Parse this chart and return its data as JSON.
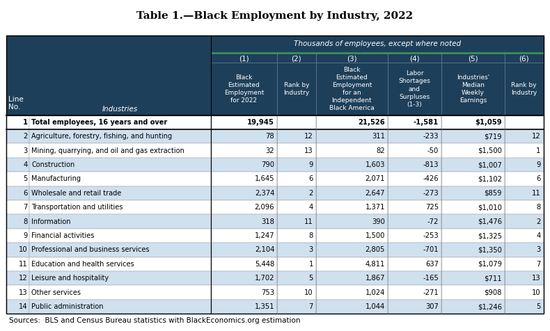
{
  "title": "Table 1.—Black Employment by Industry, 2022",
  "subtitle": "Thousands of employees, except where noted",
  "footnote": "Sources:  BLS and Census Bureau statistics with BlackEconomics.org estimation",
  "header_bg": "#1e3f5a",
  "header_text_color": "#ffffff",
  "alt_row_color": "#cfe0ef",
  "white_row_color": "#ffffff",
  "border_color": "#000000",
  "accent_color": "#3a8a5c",
  "col_numbers": [
    "(1)",
    "(2)",
    "(3)",
    "(4)",
    "(5)",
    "(6)"
  ],
  "col_headers": [
    "Black\nEstimated\nEmployment\nfor 2022",
    "Rank by\nIndustry",
    "Black\nEstimated\nEmployment\nfor an\nIndependent\nBlack America",
    "Labor\nShortages\nand\nSurpluses\n(1-3)",
    "Industries'\nMedian\nWeekly\nEarnings",
    "Rank by\nIndustry"
  ],
  "rows": [
    {
      "line": "1",
      "industry": "Total employees, 16 years and over",
      "bold": true,
      "col1": "19,945",
      "col2": "",
      "col3": "21,526",
      "col4": "-1,581",
      "col5": "$1,059",
      "col6": ""
    },
    {
      "line": "2",
      "industry": "Agriculture, forestry, fishing, and hunting",
      "bold": false,
      "col1": "78",
      "col2": "12",
      "col3": "311",
      "col4": "-233",
      "col5": "$719",
      "col6": "12"
    },
    {
      "line": "3",
      "industry": "Mining, quarrying, and oil and gas extraction",
      "bold": false,
      "col1": "32",
      "col2": "13",
      "col3": "82",
      "col4": "-50",
      "col5": "$1,500",
      "col6": "1"
    },
    {
      "line": "4",
      "industry": "Construction",
      "bold": false,
      "col1": "790",
      "col2": "9",
      "col3": "1,603",
      "col4": "-813",
      "col5": "$1,007",
      "col6": "9"
    },
    {
      "line": "5",
      "industry": "Manufacturing",
      "bold": false,
      "col1": "1,645",
      "col2": "6",
      "col3": "2,071",
      "col4": "-426",
      "col5": "$1,102",
      "col6": "6"
    },
    {
      "line": "6",
      "industry": "Wholesale and retail trade",
      "bold": false,
      "col1": "2,374",
      "col2": "2",
      "col3": "2,647",
      "col4": "-273",
      "col5": "$859",
      "col6": "11"
    },
    {
      "line": "7",
      "industry": "Transportation and utilities",
      "bold": false,
      "col1": "2,096",
      "col2": "4",
      "col3": "1,371",
      "col4": "725",
      "col5": "$1,010",
      "col6": "8"
    },
    {
      "line": "8",
      "industry": "Information",
      "bold": false,
      "col1": "318",
      "col2": "11",
      "col3": "390",
      "col4": "-72",
      "col5": "$1,476",
      "col6": "2"
    },
    {
      "line": "9",
      "industry": "Financial activities",
      "bold": false,
      "col1": "1,247",
      "col2": "8",
      "col3": "1,500",
      "col4": "-253",
      "col5": "$1,325",
      "col6": "4"
    },
    {
      "line": "10",
      "industry": "Professional and business services",
      "bold": false,
      "col1": "2,104",
      "col2": "3",
      "col3": "2,805",
      "col4": "-701",
      "col5": "$1,350",
      "col6": "3"
    },
    {
      "line": "11",
      "industry": "Education and health services",
      "bold": false,
      "col1": "5,448",
      "col2": "1",
      "col3": "4,811",
      "col4": "637",
      "col5": "$1,079",
      "col6": "7"
    },
    {
      "line": "12",
      "industry": "Leisure and hospitality",
      "bold": false,
      "col1": "1,702",
      "col2": "5",
      "col3": "1,867",
      "col4": "-165",
      "col5": "$711",
      "col6": "13"
    },
    {
      "line": "13",
      "industry": "Other services",
      "bold": false,
      "col1": "753",
      "col2": "10",
      "col3": "1,024",
      "col4": "-271",
      "col5": "$908",
      "col6": "10"
    },
    {
      "line": "14",
      "industry": "Public administration",
      "bold": false,
      "col1": "1,351",
      "col2": "7",
      "col3": "1,044",
      "col4": "307",
      "col5": "$1,246",
      "col6": "5"
    }
  ],
  "col_proportions": [
    0.037,
    0.295,
    0.108,
    0.063,
    0.117,
    0.087,
    0.103,
    0.063
  ]
}
